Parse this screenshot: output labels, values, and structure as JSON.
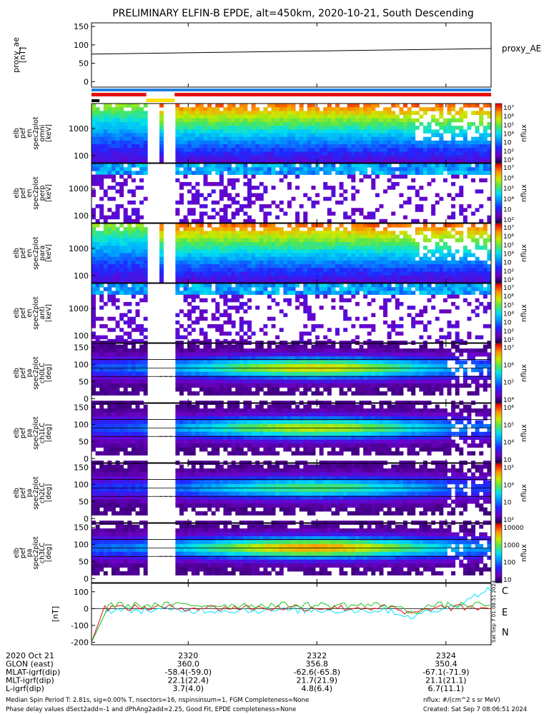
{
  "title": "PRELIMINARY ELFIN-B EPDE, alt=450km, 2020-10-21, South Descending",
  "side_stamp": "Sat Sep  7 01:08:51 2024",
  "colors": {
    "bar_blue": "#1f7fe0",
    "bar_red": "#e51010",
    "bar_yellow": "#ffe000",
    "trace_c": "#00e5ff",
    "trace_e": "#e01010",
    "trace_n": "#20c020"
  },
  "chart_data": [
    {
      "type": "line",
      "id": "proxy_ae",
      "ylabel": [
        "proxy_ae",
        "[nT]"
      ],
      "yticks": [
        0,
        50,
        100,
        150
      ],
      "ylim": [
        -15,
        160
      ],
      "series": [
        {
          "name": "proxy_AE",
          "x_frac": [
            0,
            1
          ],
          "values": [
            75,
            90
          ]
        }
      ]
    },
    {
      "type": "table",
      "id": "status_bars",
      "rows": [
        {
          "color": "blue",
          "segments": [
            [
              0,
              1
            ]
          ]
        },
        {
          "color": "red",
          "segments": [
            [
              0,
              0.137
            ],
            [
              0.208,
              1
            ]
          ]
        },
        {
          "color": "yellow",
          "segments": [
            [
              0.137,
              0.208
            ]
          ]
        },
        {
          "color": "black",
          "segments": [
            [
              0,
              0.02
            ]
          ]
        }
      ]
    },
    {
      "type": "heatmap",
      "id": "spec_en_omni",
      "ylabel": [
        "elb",
        "pef",
        "en",
        "spec2plot",
        "omni",
        "[keV]"
      ],
      "ytick_labels": [
        "1000",
        "100"
      ],
      "colorbar": {
        "label": "nflux",
        "tick_labels": [
          "10⁷",
          "10⁶",
          "10⁵",
          "10⁴",
          "10⁳",
          "10²",
          "10¹"
        ]
      }
    },
    {
      "type": "heatmap",
      "id": "spec_en_perp",
      "ylabel": [
        "elb",
        "pef",
        "en",
        "spec2plot",
        "perp",
        "[keV]"
      ],
      "ytick_labels": [
        "1000",
        "100"
      ],
      "colorbar": {
        "label": "nflux",
        "tick_labels": [
          "10⁷",
          "10⁶",
          "10⁵",
          "10⁴",
          "10⁳",
          "10²"
        ]
      }
    },
    {
      "type": "heatmap",
      "id": "spec_en_para",
      "ylabel": [
        "elb",
        "pef",
        "en",
        "spec2plot",
        "para",
        "[keV]"
      ],
      "ytick_labels": [
        "1000",
        "100"
      ],
      "colorbar": {
        "label": "nflux",
        "tick_labels": [
          "10⁷",
          "10⁶",
          "10⁵",
          "10⁴",
          "10⁳",
          "10²",
          "10¹"
        ]
      }
    },
    {
      "type": "heatmap",
      "id": "spec_en_anti",
      "ylabel": [
        "elb",
        "pef",
        "en",
        "spec2plot",
        "anti",
        "[keV]"
      ],
      "ytick_labels": [
        "1000",
        "100"
      ],
      "colorbar": {
        "label": "nflux",
        "tick_labels": [
          "10⁷",
          "10⁶",
          "10⁵",
          "10⁴",
          "10⁳",
          "10²",
          "10¹"
        ]
      }
    },
    {
      "type": "heatmap",
      "id": "spec_ch0",
      "ylabel": [
        "elb",
        "pef",
        "pa",
        "spec2plot",
        "ch0LC",
        "[deg]"
      ],
      "yticks": [
        0,
        50,
        100,
        150
      ],
      "colorbar": {
        "label": "nflux",
        "tick_labels": [
          "10⁷",
          "10⁶",
          "10⁵",
          "10⁴"
        ]
      }
    },
    {
      "type": "heatmap",
      "id": "spec_ch1",
      "ylabel": [
        "elb",
        "pef",
        "pa",
        "spec2plot",
        "ch1LC",
        "[deg]"
      ],
      "yticks": [
        0,
        50,
        100,
        150
      ],
      "colorbar": {
        "label": "nflux",
        "tick_labels": [
          "10⁶",
          "10⁵",
          "10⁴",
          "10⁳"
        ]
      }
    },
    {
      "type": "heatmap",
      "id": "spec_ch2",
      "ylabel": [
        "elb",
        "pef",
        "pa",
        "spec2plot",
        "ch2LC",
        "[deg]"
      ],
      "yticks": [
        0,
        50,
        100,
        150
      ],
      "colorbar": {
        "label": "nflux",
        "tick_labels": [
          "10⁵",
          "10⁴",
          "10⁳",
          "10²"
        ]
      }
    },
    {
      "type": "heatmap",
      "id": "spec_ch3",
      "ylabel": [
        "elb",
        "pef",
        "pa",
        "spec2plot",
        "ch3LC",
        "[deg]"
      ],
      "yticks": [
        0,
        50,
        100,
        150
      ],
      "colorbar": {
        "label": "nflux",
        "tick_labels": [
          "10000",
          "1000",
          "100",
          "10"
        ]
      }
    },
    {
      "type": "line",
      "id": "mag",
      "ylabel": [
        "[nT]"
      ],
      "yticks": [
        -200,
        -100,
        0,
        100
      ],
      "ylim": [
        -215,
        150
      ],
      "legend": [
        "C",
        "E",
        "N"
      ]
    }
  ],
  "time_axis": {
    "ticks": [
      "2320",
      "2322",
      "2324"
    ],
    "rows": [
      {
        "label": "2020 Oct 21",
        "values": [
          "2320",
          "2322",
          "2324"
        ]
      },
      {
        "label": "GLON (east)",
        "values": [
          "360.0",
          "356.8",
          "350.4"
        ]
      },
      {
        "label": "MLAT-igrf(dip)",
        "values": [
          "-58.4(-59.0)",
          "-62.6(-65.8)",
          "-67.1(-71.9)"
        ]
      },
      {
        "label": "MLT-igrf(dip)",
        "values": [
          "22.1(22.4)",
          "21.7(21.9)",
          "21.1(21.1)"
        ]
      },
      {
        "label": "L-igrf(dip)",
        "values": [
          "3.7(4.0)",
          "4.8(6.4)",
          "6.7(11.1)"
        ]
      }
    ]
  },
  "footer": {
    "line1_left": "Median Spin Period T: 2.81s, sig=0.00% T, nsectors=16, nspinsinsum=1, FGM Completeness=None",
    "line2_left": "Phase delay values dSect2add=-1 and dPhAng2add=2.25, Good Fit, EPDE completeness=None",
    "line1_right": "nflux: #/(cm^2 s sr MeV)",
    "line2_right": "Created: Sat Sep  7 08:06:51 2024"
  }
}
